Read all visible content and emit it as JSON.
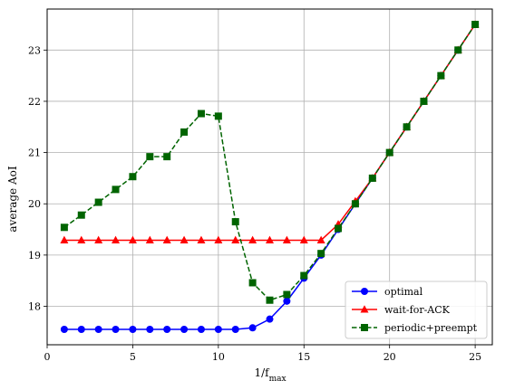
{
  "chart_data": {
    "type": "line",
    "xlabel": "1/f",
    "xlabel_sub": "max",
    "ylabel": "average AoI",
    "xlim": [
      0,
      26
    ],
    "ylim": [
      17.25,
      23.8
    ],
    "xticks": [
      0,
      5,
      10,
      15,
      20,
      25
    ],
    "yticks": [
      18,
      19,
      20,
      21,
      22,
      23
    ],
    "grid": true,
    "legend_position": "lower-right",
    "x": [
      1,
      2,
      3,
      4,
      5,
      6,
      7,
      8,
      9,
      10,
      11,
      12,
      13,
      14,
      15,
      16,
      17,
      18,
      19,
      20,
      21,
      22,
      23,
      24,
      25
    ],
    "series": [
      {
        "name": "optimal",
        "color": "#0000ff",
        "marker": "circle",
        "linestyle": "solid",
        "values": [
          17.55,
          17.55,
          17.55,
          17.55,
          17.55,
          17.55,
          17.55,
          17.55,
          17.55,
          17.55,
          17.55,
          17.58,
          17.75,
          18.1,
          18.55,
          19.0,
          19.5,
          20.0,
          20.5,
          21.0,
          21.5,
          22.0,
          22.5,
          23.0,
          23.5
        ]
      },
      {
        "name": "wait-for-ACK",
        "color": "#ff0000",
        "marker": "triangle",
        "linestyle": "solid",
        "values": [
          19.29,
          19.29,
          19.29,
          19.29,
          19.29,
          19.29,
          19.29,
          19.29,
          19.29,
          19.29,
          19.29,
          19.29,
          19.29,
          19.29,
          19.29,
          19.29,
          19.6,
          20.05,
          20.5,
          21.0,
          21.5,
          22.0,
          22.5,
          23.0,
          23.5
        ]
      },
      {
        "name": "periodic+preempt",
        "color": "#006400",
        "marker": "square",
        "linestyle": "dashed",
        "values": [
          19.54,
          19.78,
          20.03,
          20.28,
          20.53,
          20.92,
          20.92,
          21.4,
          21.76,
          21.71,
          19.65,
          18.46,
          18.12,
          18.23,
          18.6,
          19.03,
          19.52,
          20.0,
          20.5,
          21.0,
          21.5,
          22.0,
          22.5,
          23.0,
          23.5
        ]
      }
    ]
  }
}
